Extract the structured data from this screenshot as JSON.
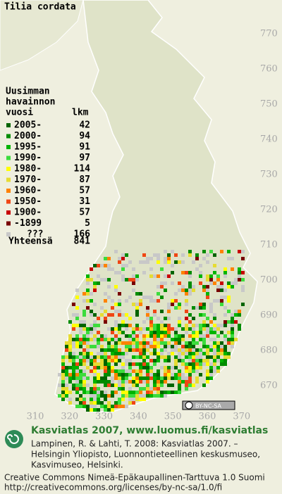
{
  "title": "Tilia cordata",
  "legend": {
    "heading": [
      "Uusimman",
      "havainnon",
      "vuosi"
    ],
    "count_heading": "lkm",
    "rows": [
      {
        "label": "2005-",
        "count": 42,
        "color": "#006400"
      },
      {
        "label": "2000-",
        "count": 94,
        "color": "#008c00"
      },
      {
        "label": "1995-",
        "count": 91,
        "color": "#00b400"
      },
      {
        "label": "1990-",
        "count": 97,
        "color": "#3cdc3c"
      },
      {
        "label": "1980-",
        "count": 114,
        "color": "#ffff00"
      },
      {
        "label": "1970-",
        "count": 87,
        "color": "#e6dc32"
      },
      {
        "label": "1960-",
        "count": 57,
        "color": "#ff8200"
      },
      {
        "label": "1950-",
        "count": 31,
        "color": "#f04614"
      },
      {
        "label": "1900-",
        "count": 57,
        "color": "#c80000"
      },
      {
        "label": "-1899",
        "count": 5,
        "color": "#780000"
      },
      {
        "label": "???",
        "count": 166,
        "color": "#c8c8c8"
      }
    ],
    "total": {
      "label": "Yhteensä",
      "count": 841
    }
  },
  "grid": {
    "x_labels": [
      310,
      320,
      330,
      340,
      350,
      360,
      370
    ],
    "y_labels": [
      770,
      760,
      750,
      740,
      730,
      720,
      710,
      700,
      690,
      680,
      670
    ]
  },
  "license_badge": "BY-NC-SA",
  "footer": {
    "heading": "Kasviatlas 2007, www.luomus.fi/kasviatlas",
    "citation": [
      "Lampinen, R. & Lahti, T. 2008: Kasviatlas 2007. –",
      "Helsingin Yliopisto, Luonnontieteellinen keskusmuseo,",
      "Kasvimuseo, Helsinki."
    ],
    "license": [
      "Creative Commons Nimeä-Epäkaupallinen-Tarttuva 1.0 Suomi",
      "http://creativecommons.org/licenses/by-nc-sa/1.0/fi"
    ]
  }
}
